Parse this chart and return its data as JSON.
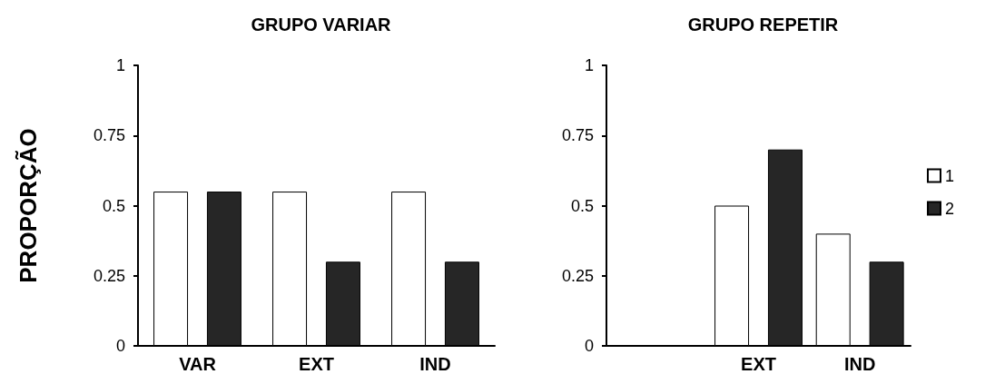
{
  "chart_data": [
    {
      "type": "bar",
      "title": "GRUPO VARIAR",
      "ylabel": "PROPORÇÃO",
      "categories": [
        "VAR",
        "EXT",
        "IND"
      ],
      "series": [
        {
          "color": "#ffffff",
          "values": [
            0.55,
            0.55,
            0.55
          ]
        },
        {
          "color": "#262626",
          "values": [
            0.55,
            0.3,
            0.3
          ]
        }
      ],
      "ylim": [
        0,
        1
      ],
      "yticks": [
        0,
        0.25,
        0.5,
        0.75,
        1
      ],
      "grid": false,
      "legend": false
    },
    {
      "type": "bar",
      "title": "GRUPO REPETIR",
      "categories": [
        null,
        "EXT",
        "IND"
      ],
      "series": [
        {
          "name": "1",
          "color": "#ffffff",
          "values": [
            null,
            0.5,
            0.4
          ]
        },
        {
          "name": "2",
          "color": "#262626",
          "values": [
            null,
            0.7,
            0.3
          ]
        }
      ],
      "ylim": [
        0,
        1
      ],
      "yticks": [
        0,
        0.25,
        0.5,
        0.75,
        1
      ],
      "grid": false,
      "legend": "right"
    }
  ]
}
